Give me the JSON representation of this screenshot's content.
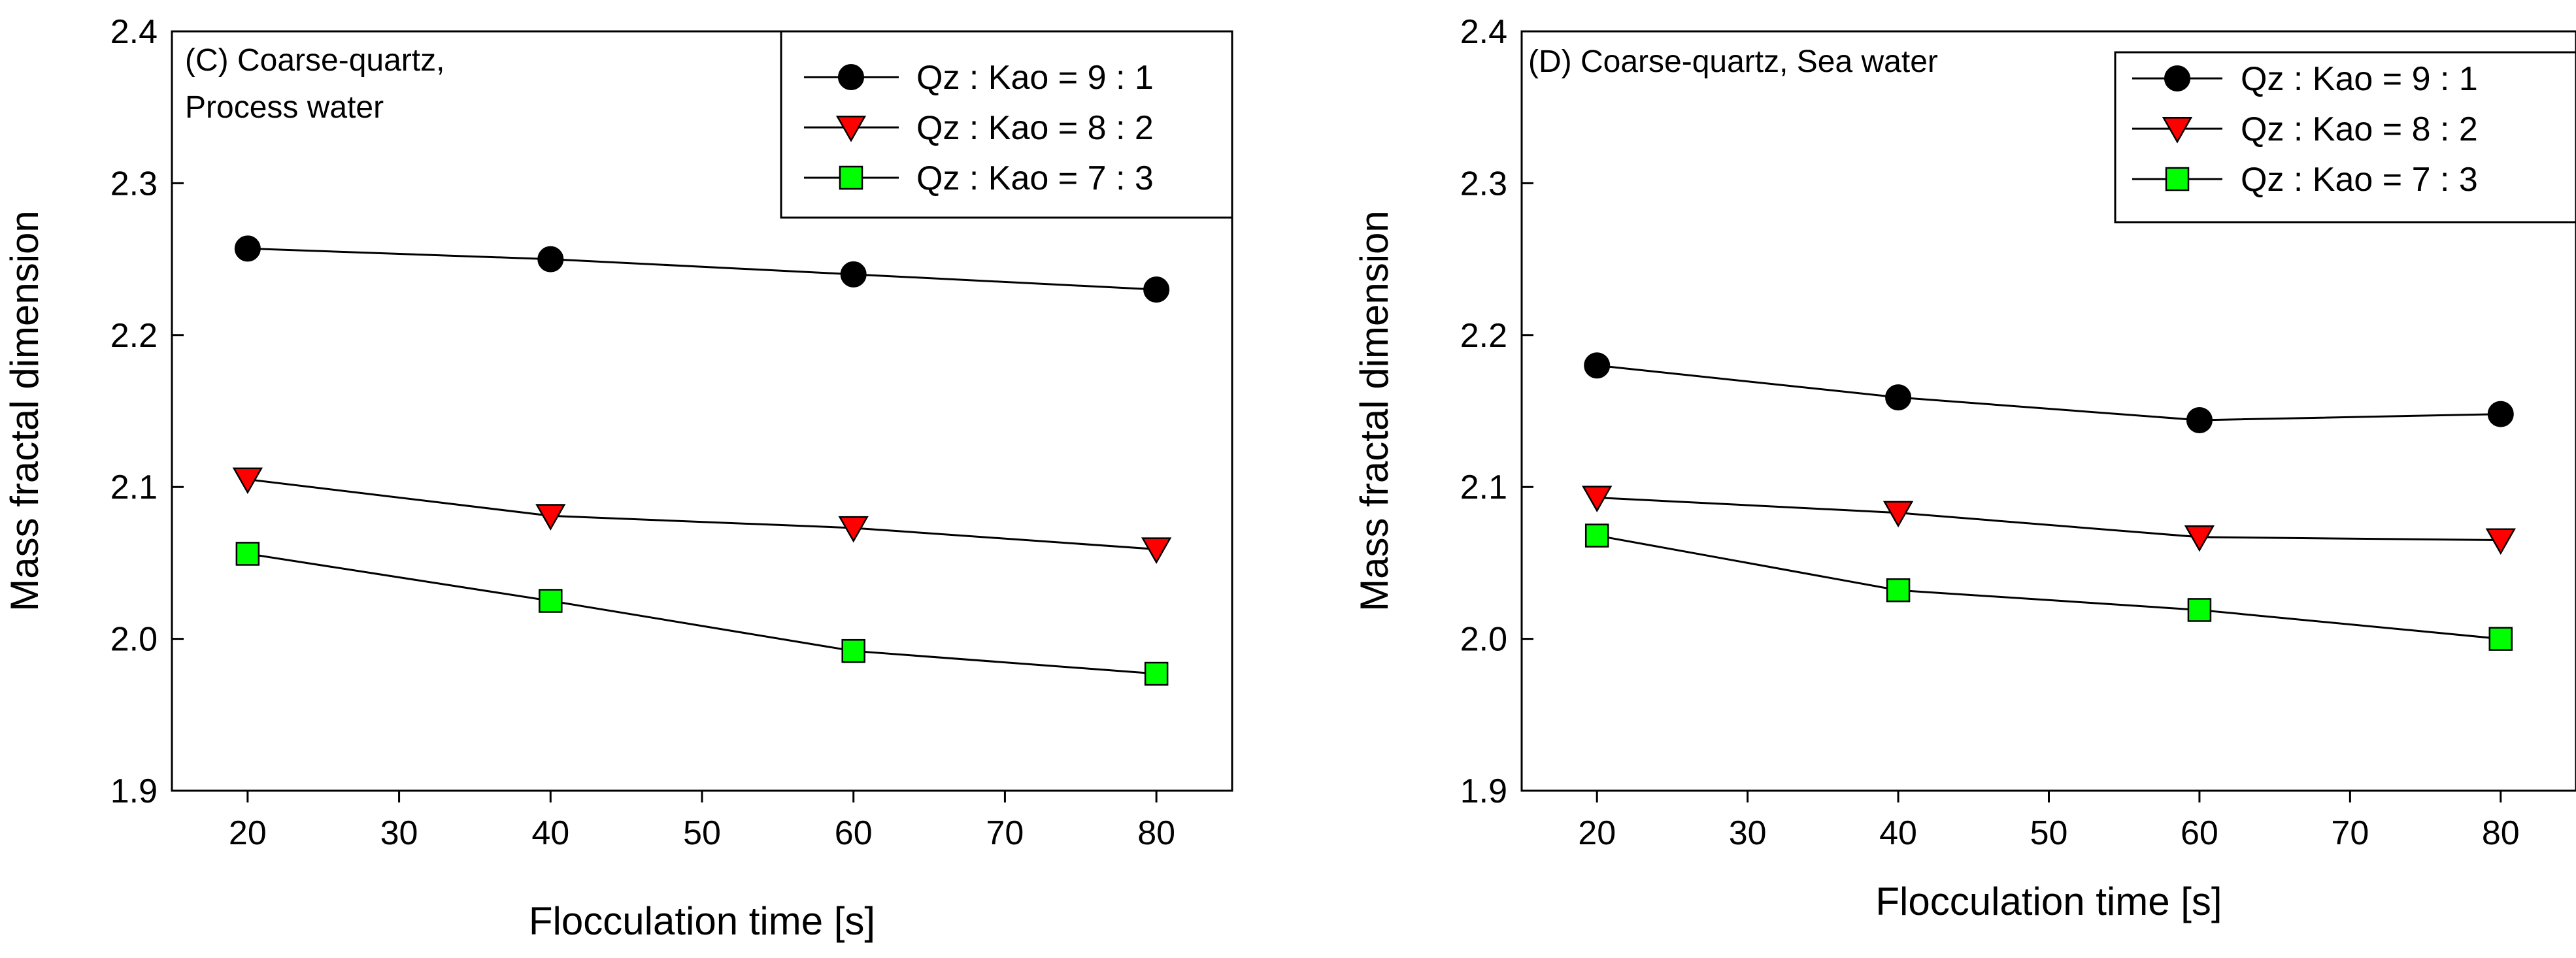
{
  "chart_data": [
    {
      "type": "line",
      "annotation_lines": [
        "(C) Coarse-quartz,",
        "Process water"
      ],
      "xlabel": "Flocculation time [s]",
      "ylabel": "Mass fractal dimension",
      "xlim": [
        15,
        85
      ],
      "ylim": [
        1.9,
        2.4
      ],
      "xticks": [
        "20",
        "30",
        "40",
        "50",
        "60",
        "70",
        "80"
      ],
      "yticks": [
        "1.9",
        "2.0",
        "2.1",
        "2.2",
        "2.3",
        "2.4"
      ],
      "grid": false,
      "legend_position": "top-right",
      "x": [
        20,
        40,
        60,
        80
      ],
      "series": [
        {
          "name": "Qz : Kao = 9 : 1",
          "marker": "circle",
          "color": "#000000",
          "values": [
            2.257,
            2.25,
            2.24,
            2.23
          ]
        },
        {
          "name": "Qz : Kao = 8 : 2",
          "marker": "triangle-down",
          "color": "#ff0000",
          "values": [
            2.105,
            2.081,
            2.073,
            2.059
          ]
        },
        {
          "name": "Qz : Kao = 7 : 3",
          "marker": "square",
          "color": "#00ff00",
          "values": [
            2.056,
            2.025,
            1.992,
            1.977
          ]
        }
      ]
    },
    {
      "type": "line",
      "annotation_lines": [
        "(D) Coarse-quartz, Sea water"
      ],
      "xlabel": "Flocculation time [s]",
      "ylabel": "Mass fractal dimension",
      "xlim": [
        15,
        85
      ],
      "ylim": [
        1.9,
        2.4
      ],
      "xticks": [
        "20",
        "30",
        "40",
        "50",
        "60",
        "70",
        "80"
      ],
      "yticks": [
        "1.9",
        "2.0",
        "2.1",
        "2.2",
        "2.3",
        "2.4"
      ],
      "grid": false,
      "legend_position": "top-right",
      "x": [
        20,
        40,
        60,
        80
      ],
      "series": [
        {
          "name": "Qz : Kao = 9 : 1",
          "marker": "circle",
          "color": "#000000",
          "values": [
            2.18,
            2.159,
            2.144,
            2.148
          ]
        },
        {
          "name": "Qz : Kao = 8 : 2",
          "marker": "triangle-down",
          "color": "#ff0000",
          "values": [
            2.093,
            2.083,
            2.067,
            2.065
          ]
        },
        {
          "name": "Qz : Kao = 7 : 3",
          "marker": "square",
          "color": "#00ff00",
          "values": [
            2.068,
            2.032,
            2.019,
            2.0
          ]
        }
      ]
    }
  ]
}
